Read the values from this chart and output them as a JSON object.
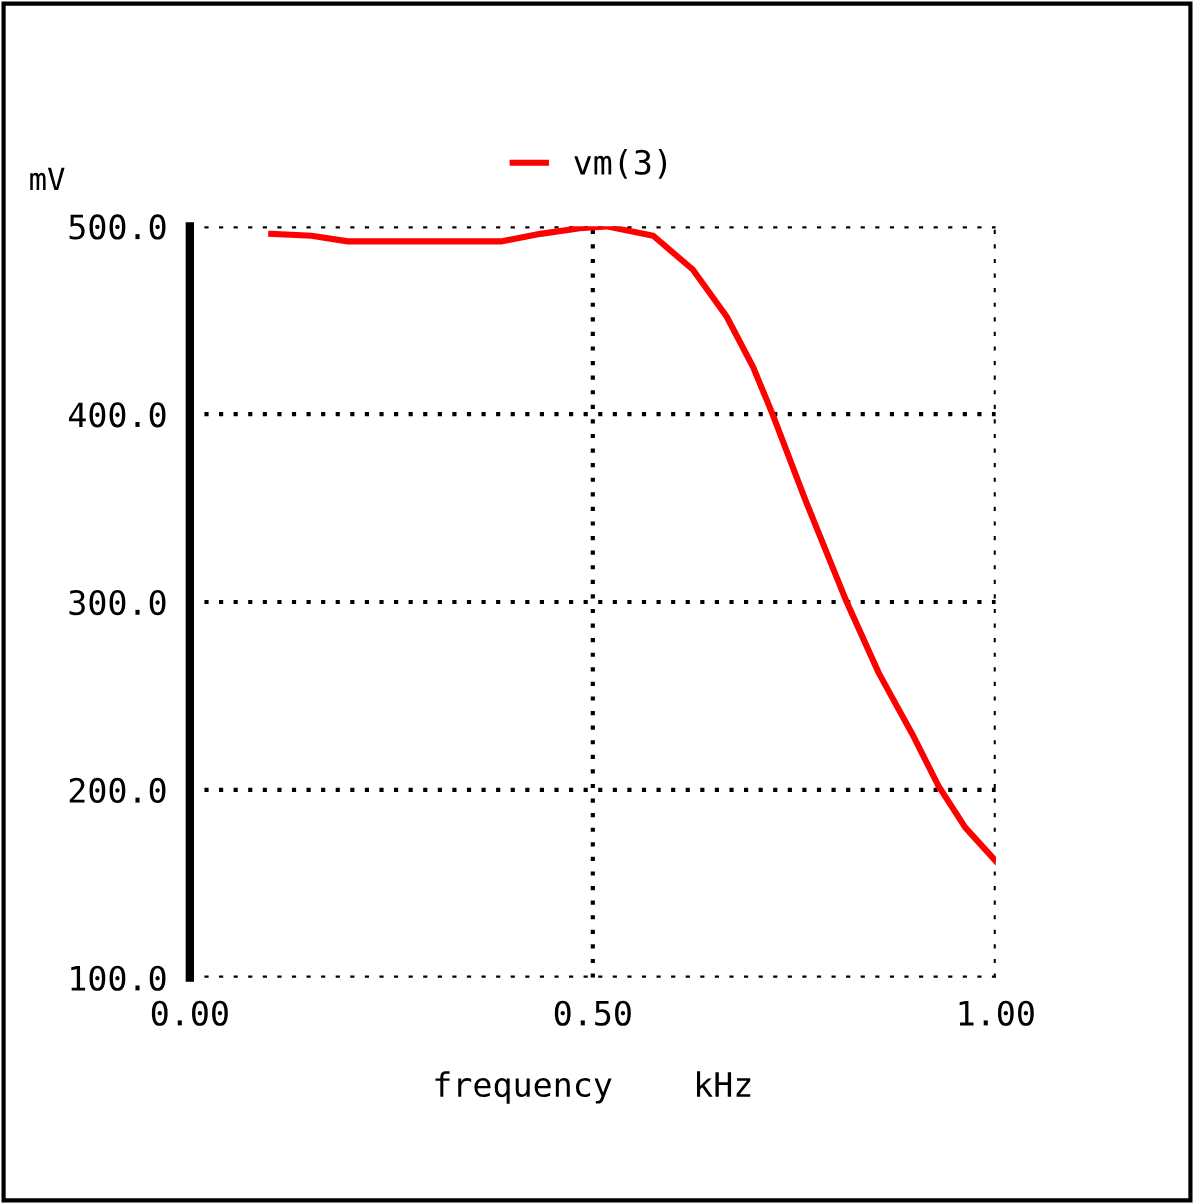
{
  "chart_data": {
    "type": "line",
    "xlabel": "frequency    kHz",
    "ylabel": "mV",
    "xlim": [
      0.0,
      1.0
    ],
    "ylim": [
      100.0,
      500.0
    ],
    "xticks": [
      {
        "value": 0.0,
        "label": "0.00"
      },
      {
        "value": 0.5,
        "label": "0.50"
      },
      {
        "value": 1.0,
        "label": "1.00"
      }
    ],
    "yticks": [
      {
        "value": 100,
        "label": "100.0"
      },
      {
        "value": 200,
        "label": "200.0"
      },
      {
        "value": 300,
        "label": "300.0"
      },
      {
        "value": 400,
        "label": "400.0"
      },
      {
        "value": 500,
        "label": "500.0"
      }
    ],
    "grid": true,
    "legend": "top",
    "line_style": "solid",
    "series": [
      {
        "name": "vm(3)",
        "color": "#ff0000",
        "x": [
          0.101,
          0.151,
          0.196,
          0.386,
          0.435,
          0.484,
          0.517,
          0.575,
          0.624,
          0.666,
          0.699,
          0.723,
          0.764,
          0.814,
          0.855,
          0.896,
          0.929,
          0.962,
          1.0
        ],
        "values": [
          496,
          495,
          492,
          492,
          496,
          499,
          500,
          495,
          477,
          452,
          425,
          400,
          354,
          301,
          262,
          230,
          202,
          180,
          162
        ]
      }
    ]
  }
}
